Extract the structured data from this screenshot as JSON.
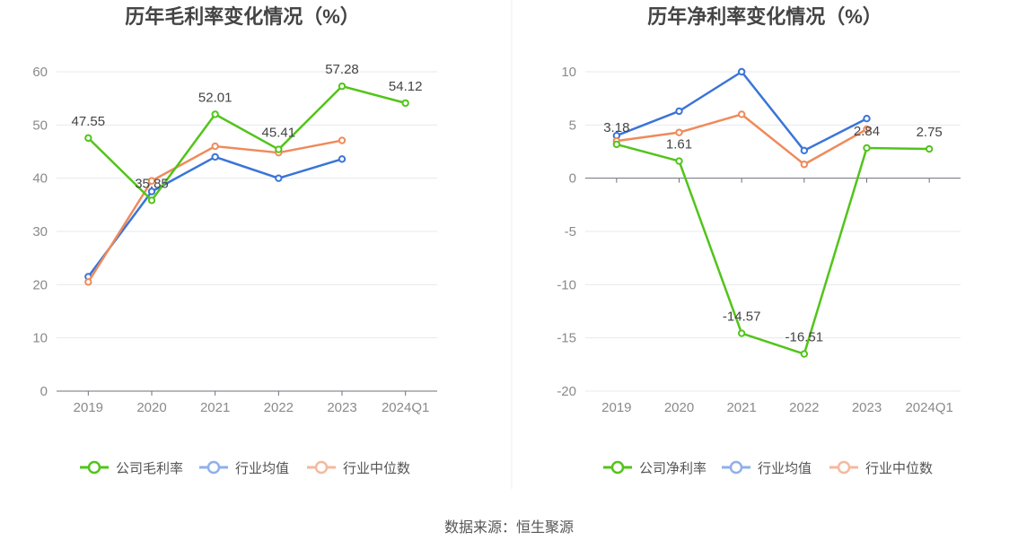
{
  "source": "数据来源：恒生聚源",
  "colors": {
    "company": "#52c41a",
    "avg": "#3a74d8",
    "median": "#ef8a5b",
    "legend_avg": "#8fb0ea",
    "legend_median": "#f5b99d"
  },
  "chart_data": [
    {
      "type": "line",
      "title": "历年毛利率变化情况（%）",
      "categories": [
        "2019",
        "2020",
        "2021",
        "2022",
        "2023",
        "2024Q1"
      ],
      "ylim": [
        0,
        60
      ],
      "yticks": [
        "0",
        "10",
        "20",
        "30",
        "40",
        "50",
        "60"
      ],
      "grid": true,
      "legend_position": "bottom",
      "series": [
        {
          "name": "公司毛利率",
          "values": [
            47.55,
            35.85,
            52.01,
            45.41,
            57.28,
            54.12
          ],
          "labels": [
            "47.55",
            "35.85",
            "52.01",
            "45.41",
            "57.28",
            "54.12"
          ]
        },
        {
          "name": "行业均值",
          "values": [
            21.5,
            37.5,
            44.0,
            40.0,
            43.6,
            null
          ]
        },
        {
          "name": "行业中位数",
          "values": [
            20.5,
            39.5,
            46.0,
            44.8,
            47.1,
            null
          ]
        }
      ]
    },
    {
      "type": "line",
      "title": "历年净利率变化情况（%）",
      "categories": [
        "2019",
        "2020",
        "2021",
        "2022",
        "2023",
        "2024Q1"
      ],
      "ylim": [
        -20,
        10
      ],
      "yticks": [
        "-20",
        "-15",
        "-10",
        "-5",
        "0",
        "5",
        "10"
      ],
      "grid": true,
      "legend_position": "bottom",
      "series": [
        {
          "name": "公司净利率",
          "values": [
            3.18,
            1.61,
            -14.57,
            -16.51,
            2.84,
            2.75
          ],
          "labels": [
            "3.18",
            "1.61",
            "-14.57",
            "-16.51",
            "2.84",
            "2.75"
          ]
        },
        {
          "name": "行业均值",
          "values": [
            4.0,
            6.3,
            10.0,
            2.6,
            5.6,
            null
          ]
        },
        {
          "name": "行业中位数",
          "values": [
            3.5,
            4.3,
            6.0,
            1.3,
            4.6,
            null
          ]
        }
      ]
    }
  ]
}
